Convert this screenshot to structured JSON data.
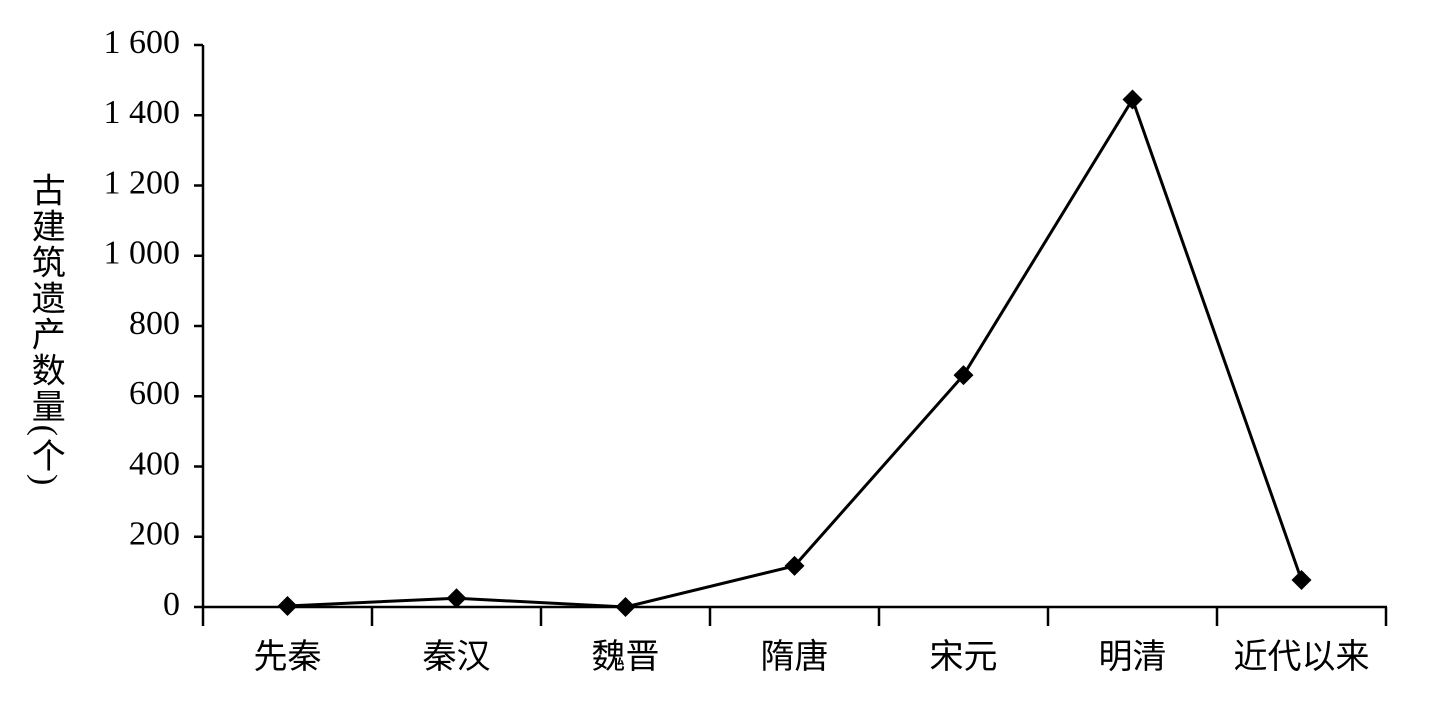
{
  "chart_data": {
    "type": "line",
    "y_label": "古建筑遗产数量(个)",
    "categories": [
      "先秦",
      "秦汉",
      "魏晋",
      "隋唐",
      "宋元",
      "明清",
      "近代以来"
    ],
    "values": [
      3,
      25,
      0,
      117,
      660,
      1445,
      77
    ],
    "color": "#000000",
    "ylim": [
      0,
      1600
    ],
    "yticks": [
      0,
      200,
      400,
      600,
      800,
      {
        "value": 1000,
        "label": "1 000"
      },
      {
        "value": 1200,
        "label": "1 200"
      },
      {
        "value": 1400,
        "label": "1 400"
      },
      {
        "value": 1600,
        "label": "1 600"
      }
    ],
    "grid": false
  }
}
